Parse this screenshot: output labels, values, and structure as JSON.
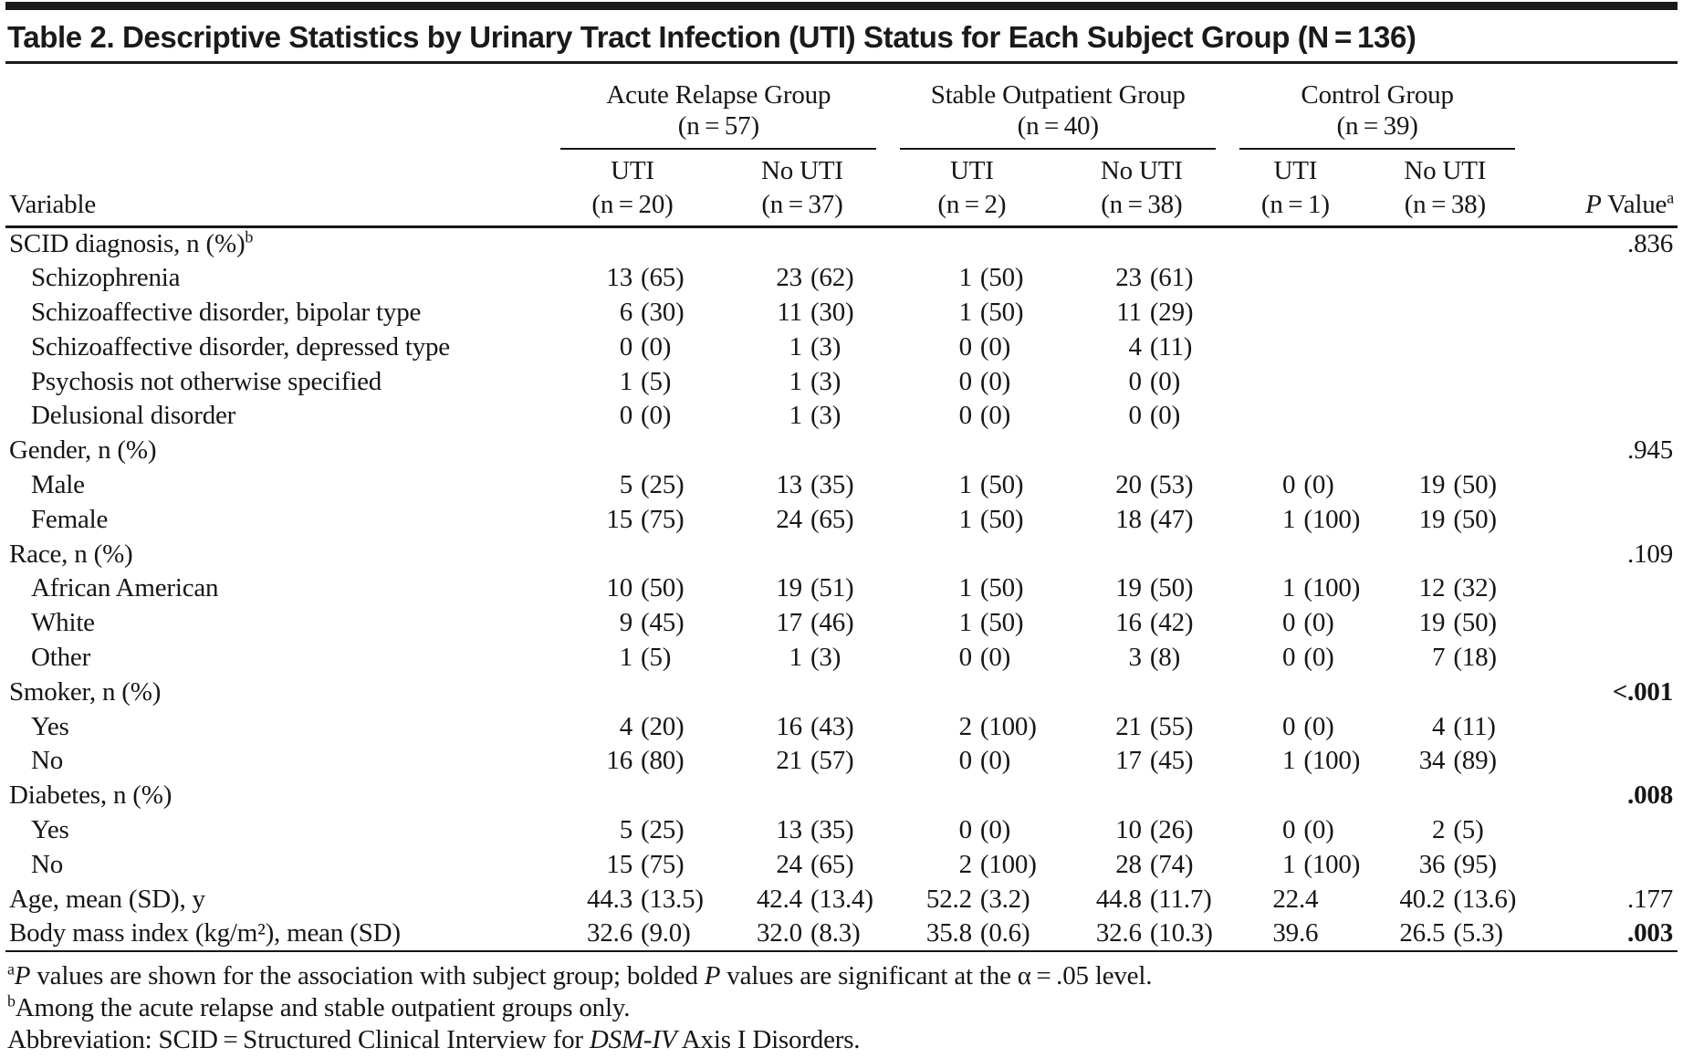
{
  "title": "Table 2. Descriptive Statistics by Urinary Tract Infection (UTI) Status for Each Subject Group (N = 136)",
  "table": {
    "variable_header": "Variable",
    "p_header": {
      "p": "P",
      "rest": " Value",
      "sup": "a"
    },
    "groups": [
      {
        "name": "Acute Relapse Group",
        "n": "(n = 57)"
      },
      {
        "name": "Stable Outpatient Group",
        "n": "(n = 40)"
      },
      {
        "name": "Control Group",
        "n": "(n = 39)"
      }
    ],
    "subcolumns": [
      {
        "label": "UTI",
        "n": "(n = 20)"
      },
      {
        "label": "No UTI",
        "n": "(n = 37)"
      },
      {
        "label": "UTI",
        "n": "(n = 2)"
      },
      {
        "label": "No UTI",
        "n": "(n = 38)"
      },
      {
        "label": "UTI",
        "n": "(n = 1)"
      },
      {
        "label": "No UTI",
        "n": "(n = 38)"
      }
    ],
    "rows": [
      {
        "label": "SCID diagnosis, n (%)",
        "sup": "b",
        "indent": false,
        "cells": [
          "",
          "",
          "",
          "",
          "",
          ""
        ],
        "p": ".836",
        "p_bold": false
      },
      {
        "label": "Schizophrenia",
        "indent": true,
        "cells": [
          "13 (65)",
          "23 (62)",
          "1 (50)",
          "23 (61)",
          "",
          ""
        ],
        "p": "",
        "p_bold": false
      },
      {
        "label": "Schizoaffective disorder, bipolar type",
        "indent": true,
        "cells": [
          "6 (30)",
          "11 (30)",
          "1 (50)",
          "11 (29)",
          "",
          ""
        ],
        "p": "",
        "p_bold": false
      },
      {
        "label": "Schizoaffective disorder, depressed type",
        "indent": true,
        "cells": [
          "0 (0)",
          "1 (3)",
          "0 (0)",
          "4 (11)",
          "",
          ""
        ],
        "p": "",
        "p_bold": false
      },
      {
        "label": "Psychosis not otherwise specified",
        "indent": true,
        "cells": [
          "1 (5)",
          "1 (3)",
          "0 (0)",
          "0 (0)",
          "",
          ""
        ],
        "p": "",
        "p_bold": false
      },
      {
        "label": "Delusional disorder",
        "indent": true,
        "cells": [
          "0 (0)",
          "1 (3)",
          "0 (0)",
          "0 (0)",
          "",
          ""
        ],
        "p": "",
        "p_bold": false
      },
      {
        "label": "Gender, n (%)",
        "indent": false,
        "cells": [
          "",
          "",
          "",
          "",
          "",
          ""
        ],
        "p": ".945",
        "p_bold": false
      },
      {
        "label": "Male",
        "indent": true,
        "cells": [
          "5 (25)",
          "13 (35)",
          "1 (50)",
          "20 (53)",
          "0 (0)",
          "19 (50)"
        ],
        "p": "",
        "p_bold": false
      },
      {
        "label": "Female",
        "indent": true,
        "cells": [
          "15 (75)",
          "24 (65)",
          "1 (50)",
          "18 (47)",
          "1 (100)",
          "19 (50)"
        ],
        "p": "",
        "p_bold": false
      },
      {
        "label": "Race, n (%)",
        "indent": false,
        "cells": [
          "",
          "",
          "",
          "",
          "",
          ""
        ],
        "p": ".109",
        "p_bold": false
      },
      {
        "label": "African American",
        "indent": true,
        "cells": [
          "10 (50)",
          "19 (51)",
          "1 (50)",
          "19 (50)",
          "1 (100)",
          "12 (32)"
        ],
        "p": "",
        "p_bold": false
      },
      {
        "label": "White",
        "indent": true,
        "cells": [
          "9 (45)",
          "17 (46)",
          "1 (50)",
          "16 (42)",
          "0 (0)",
          "19 (50)"
        ],
        "p": "",
        "p_bold": false
      },
      {
        "label": "Other",
        "indent": true,
        "cells": [
          "1 (5)",
          "1 (3)",
          "0 (0)",
          "3 (8)",
          "0 (0)",
          "7 (18)"
        ],
        "p": "",
        "p_bold": false
      },
      {
        "label": "Smoker, n (%)",
        "indent": false,
        "cells": [
          "",
          "",
          "",
          "",
          "",
          ""
        ],
        "p": "<.001",
        "p_bold": true
      },
      {
        "label": "Yes",
        "indent": true,
        "cells": [
          "4 (20)",
          "16 (43)",
          "2 (100)",
          "21 (55)",
          "0 (0)",
          "4 (11)"
        ],
        "p": "",
        "p_bold": false
      },
      {
        "label": "No",
        "indent": true,
        "cells": [
          "16 (80)",
          "21 (57)",
          "0 (0)",
          "17 (45)",
          "1 (100)",
          "34 (89)"
        ],
        "p": "",
        "p_bold": false
      },
      {
        "label": "Diabetes, n (%)",
        "indent": false,
        "cells": [
          "",
          "",
          "",
          "",
          "",
          ""
        ],
        "p": ".008",
        "p_bold": true
      },
      {
        "label": "Yes",
        "indent": true,
        "cells": [
          "5 (25)",
          "13 (35)",
          "0 (0)",
          "10 (26)",
          "0 (0)",
          "2 (5)"
        ],
        "p": "",
        "p_bold": false
      },
      {
        "label": "No",
        "indent": true,
        "cells": [
          "15 (75)",
          "24 (65)",
          "2 (100)",
          "28 (74)",
          "1 (100)",
          "36 (95)"
        ],
        "p": "",
        "p_bold": false
      },
      {
        "label": "Age, mean (SD), y",
        "indent": false,
        "cells": [
          "44.3 (13.5)",
          "42.4 (13.4)",
          "52.2 (3.2)",
          "44.8 (11.7)",
          "22.4",
          "40.2 (13.6)"
        ],
        "p": ".177",
        "p_bold": false
      },
      {
        "label": "Body mass index (kg/m²), mean (SD)",
        "indent": false,
        "cells": [
          "32.6 (9.0)",
          "32.0 (8.3)",
          "35.8 (0.6)",
          "32.6 (10.3)",
          "39.6",
          "26.5 (5.3)"
        ],
        "p": ".003",
        "p_bold": true
      }
    ],
    "footnotes": [
      {
        "marker": "a",
        "segments": [
          {
            "text": "P",
            "italic": true
          },
          {
            "text": " values are shown for the association with subject group; bolded "
          },
          {
            "text": "P",
            "italic": true
          },
          {
            "text": " values are significant at the α = .05 level."
          }
        ]
      },
      {
        "marker": "b",
        "segments": [
          {
            "text": "Among the acute relapse and stable outpatient groups only."
          }
        ]
      },
      {
        "marker": "",
        "segments": [
          {
            "text": "Abbreviation: SCID = Structured Clinical Interview for "
          },
          {
            "text": "DSM-IV",
            "italic": true
          },
          {
            "text": " Axis I Disorders."
          }
        ]
      }
    ]
  }
}
